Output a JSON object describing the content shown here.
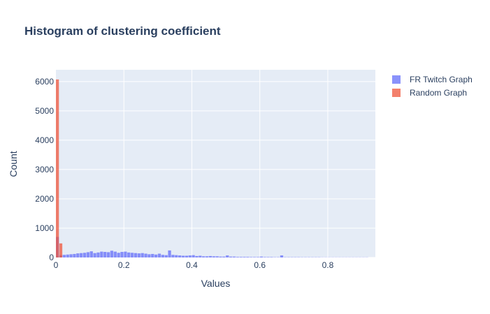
{
  "chart_data": {
    "type": "bar",
    "title": "Histogram of clustering coefficient",
    "xlabel": "Values",
    "ylabel": "Count",
    "xlim": [
      0,
      0.94
    ],
    "ylim": [
      0,
      6400
    ],
    "x_ticks": [
      "0",
      "0.2",
      "0.4",
      "0.6",
      "0.8"
    ],
    "x_tick_values": [
      0,
      0.2,
      0.4,
      0.6,
      0.8
    ],
    "y_ticks": [
      "0",
      "1000",
      "2000",
      "3000",
      "4000",
      "5000",
      "6000"
    ],
    "y_tick_values": [
      0,
      1000,
      2000,
      3000,
      4000,
      5000,
      6000
    ],
    "grid": true,
    "legend_position": "top-right",
    "plot_background": "#e5ecf6",
    "bin_width": 0.01,
    "series": [
      {
        "name": "FR Twitch Graph",
        "color": "#636efa",
        "opacity": 0.75,
        "bin_starts": [
          0.0,
          0.01,
          0.02,
          0.03,
          0.04,
          0.05,
          0.06,
          0.07,
          0.08,
          0.09,
          0.1,
          0.11,
          0.12,
          0.13,
          0.14,
          0.15,
          0.16,
          0.17,
          0.18,
          0.19,
          0.2,
          0.21,
          0.22,
          0.23,
          0.24,
          0.25,
          0.26,
          0.27,
          0.28,
          0.29,
          0.3,
          0.31,
          0.32,
          0.33,
          0.34,
          0.35,
          0.36,
          0.37,
          0.38,
          0.39,
          0.4,
          0.41,
          0.42,
          0.43,
          0.44,
          0.45,
          0.46,
          0.47,
          0.48,
          0.49,
          0.5,
          0.51,
          0.52,
          0.53,
          0.54,
          0.55,
          0.56,
          0.57,
          0.58,
          0.59,
          0.6,
          0.61,
          0.62,
          0.63,
          0.64,
          0.65,
          0.66,
          0.67,
          0.68,
          0.69,
          0.7,
          0.71,
          0.72,
          0.73,
          0.74,
          0.75,
          0.76,
          0.77,
          0.78,
          0.79,
          0.8,
          0.81,
          0.82,
          0.83,
          0.84,
          0.85,
          0.86,
          0.87,
          0.88,
          0.89,
          0.9,
          0.91
        ],
        "values": [
          700,
          80,
          90,
          100,
          110,
          120,
          140,
          150,
          160,
          180,
          210,
          150,
          170,
          200,
          190,
          180,
          230,
          200,
          160,
          190,
          200,
          170,
          160,
          150,
          140,
          150,
          130,
          110,
          120,
          100,
          130,
          90,
          80,
          240,
          90,
          80,
          70,
          60,
          60,
          70,
          80,
          50,
          60,
          40,
          40,
          50,
          40,
          40,
          30,
          30,
          70,
          30,
          30,
          20,
          20,
          20,
          20,
          15,
          15,
          15,
          30,
          15,
          15,
          15,
          10,
          10,
          70,
          10,
          10,
          10,
          10,
          10,
          8,
          8,
          8,
          8,
          8,
          8,
          5,
          5,
          5,
          5,
          5,
          5,
          5,
          5,
          5,
          5,
          5,
          5,
          5,
          5
        ]
      },
      {
        "name": "Random Graph",
        "color": "#ef553b",
        "opacity": 0.75,
        "bin_starts": [
          0.0,
          0.01
        ],
        "values": [
          6070,
          480
        ]
      }
    ]
  }
}
